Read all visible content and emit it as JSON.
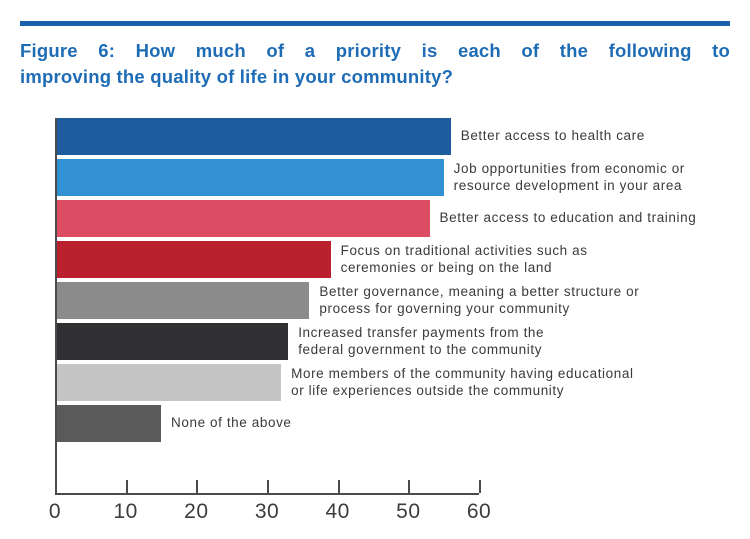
{
  "page": {
    "title_lines": [
      "Figure 6: How much of a priority is each of the following to",
      "improving the quality of life in your community?"
    ],
    "title_color": "#1e6cb5",
    "rule_color": "#1a5fae",
    "background_color": "#ffffff"
  },
  "chart_data": {
    "type": "bar",
    "orientation": "horizontal",
    "title": "Figure 6: How much of a priority is each of the following to improving the quality of life in your community?",
    "categories": [
      "Better access to health care",
      "Job opportunities from economic or\nresource development in your area",
      "Better access to education and training",
      "Focus on traditional activities such as\nceremonies or being on the land",
      "Better governance, meaning a better structure or\nprocess for governing your community",
      "Increased transfer payments from the\nfederal government to the community",
      "More members of the community having educational\nor life experiences outside the community",
      "None of the above"
    ],
    "values": [
      56,
      55,
      53,
      39,
      36,
      33,
      32,
      15
    ],
    "bar_colors": [
      "#1e5c9d",
      "#3191d3",
      "#dc4d63",
      "#ba202e",
      "#8b8b8b",
      "#303032",
      "#c5c5c5",
      "#5a5a5a"
    ],
    "xlabel": "",
    "ylabel": "",
    "xlim": [
      0,
      60
    ],
    "x_ticks": [
      0,
      10,
      20,
      30,
      40,
      50,
      60
    ],
    "grid": false,
    "legend": "none",
    "value_labels": "category labels right of each bar",
    "axis_color": "#4b4b4b",
    "label_text_color": "#3a3a3a"
  }
}
